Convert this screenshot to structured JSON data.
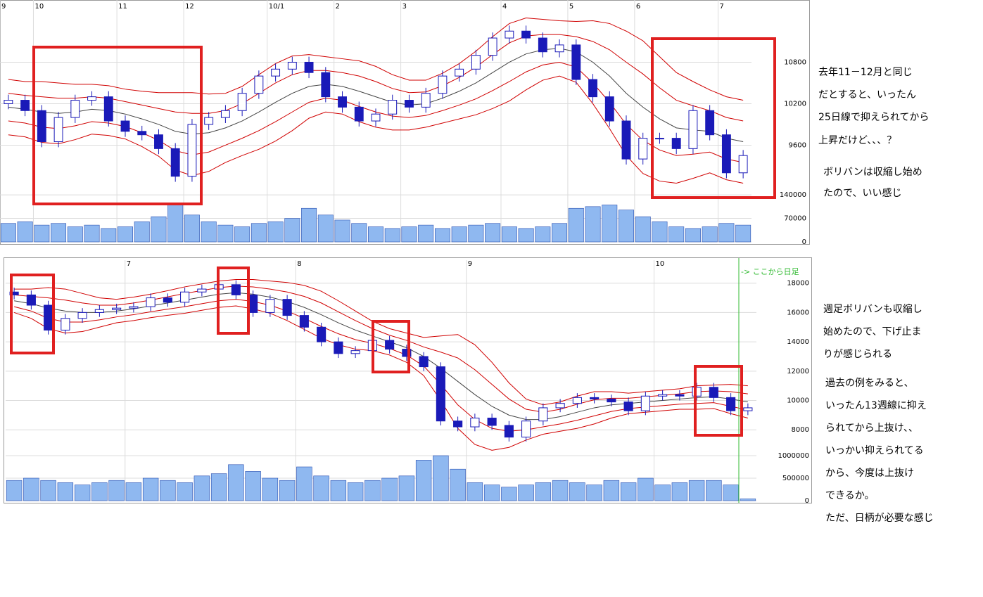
{
  "chart_data": [
    {
      "type": "candlestick",
      "categories": [
        "9",
        null,
        "10",
        null,
        null,
        null,
        null,
        "11",
        null,
        null,
        null,
        "12",
        null,
        null,
        null,
        null,
        "10/1",
        null,
        null,
        null,
        "2",
        null,
        null,
        null,
        "3",
        null,
        null,
        null,
        null,
        null,
        "4",
        null,
        null,
        null,
        "5",
        null,
        null,
        null,
        "6",
        null,
        null,
        null,
        null,
        "7",
        null
      ],
      "open": [
        10200,
        10250,
        10100,
        9650,
        10000,
        10250,
        10300,
        9950,
        9800,
        9750,
        9550,
        9150,
        9900,
        10000,
        10100,
        10350,
        10600,
        10700,
        10800,
        10650,
        10300,
        10150,
        9950,
        10050,
        10250,
        10150,
        10350,
        10600,
        10700,
        10900,
        11150,
        11250,
        11150,
        10950,
        11050,
        10550,
        10300,
        9950,
        9400,
        9700,
        9700,
        9550,
        10100,
        9750,
        9200
      ],
      "high": [
        10330,
        10330,
        10180,
        10080,
        10330,
        10380,
        10380,
        10030,
        9880,
        9830,
        9630,
        9980,
        10080,
        10180,
        10430,
        10680,
        10780,
        10880,
        10880,
        10730,
        10380,
        10230,
        10130,
        10330,
        10330,
        10430,
        10680,
        10780,
        10980,
        11230,
        11330,
        11330,
        11230,
        11130,
        11130,
        10630,
        10380,
        10030,
        9780,
        9780,
        9780,
        10180,
        10180,
        9830,
        9530
      ],
      "low": [
        10120,
        10020,
        9570,
        9570,
        9920,
        10170,
        9870,
        9720,
        9670,
        9470,
        9070,
        9070,
        9820,
        9920,
        10020,
        10270,
        10520,
        10620,
        10570,
        10220,
        10070,
        9870,
        9870,
        9970,
        10070,
        10070,
        10270,
        10520,
        10620,
        10820,
        11070,
        11070,
        10870,
        10870,
        10470,
        10220,
        9870,
        9320,
        9320,
        9620,
        9470,
        9470,
        9670,
        9120,
        9120
      ],
      "close": [
        10250,
        10100,
        9650,
        10000,
        10250,
        10300,
        9950,
        9800,
        9750,
        9550,
        9150,
        9900,
        10000,
        10100,
        10350,
        10600,
        10700,
        10800,
        10650,
        10300,
        10150,
        9950,
        10050,
        10250,
        10150,
        10350,
        10600,
        10700,
        10900,
        11150,
        11250,
        11150,
        10950,
        11050,
        10550,
        10300,
        9950,
        9400,
        9700,
        9700,
        9550,
        10100,
        9750,
        9200,
        9450
      ],
      "up_color": "#ffffff",
      "down_color": "#1a1ab8",
      "candle_stroke": "#1a1ab8",
      "series": [
        {
          "color": "#444444",
          "values": [
            10150,
            10120,
            10080,
            10060,
            10080,
            10120,
            10100,
            10050,
            9980,
            9900,
            9800,
            9760,
            9780,
            9850,
            9950,
            10080,
            10220,
            10350,
            10450,
            10480,
            10450,
            10380,
            10300,
            10220,
            10180,
            10200,
            10280,
            10380,
            10500,
            10650,
            10800,
            10920,
            10980,
            11000,
            10950,
            10800,
            10600,
            10350,
            10150,
            9980,
            9850,
            9820,
            9800,
            9700,
            9650
          ]
        },
        {
          "color": "#d00000",
          "values": [
            10350,
            10320,
            10300,
            10280,
            10280,
            10300,
            10280,
            10230,
            10180,
            10130,
            10080,
            10060,
            10060,
            10100,
            10200,
            10350,
            10500,
            10620,
            10680,
            10680,
            10650,
            10600,
            10520,
            10420,
            10360,
            10370,
            10460,
            10580,
            10730,
            10910,
            11080,
            11180,
            11200,
            11200,
            11170,
            11100,
            10980,
            10800,
            10630,
            10430,
            10250,
            10170,
            10100,
            10000,
            9950
          ]
        },
        {
          "color": "#d00000",
          "values": [
            10550,
            10520,
            10520,
            10500,
            10480,
            10480,
            10460,
            10410,
            10380,
            10360,
            10360,
            10360,
            10340,
            10350,
            10450,
            10620,
            10780,
            10890,
            10910,
            10880,
            10850,
            10820,
            10740,
            10620,
            10540,
            10540,
            10640,
            10780,
            10960,
            11170,
            11360,
            11440,
            11420,
            11400,
            11390,
            11400,
            11360,
            11250,
            11110,
            10880,
            10650,
            10520,
            10400,
            10300,
            10250
          ]
        },
        {
          "color": "#d00000",
          "values": [
            9950,
            9920,
            9860,
            9840,
            9880,
            9940,
            9920,
            9870,
            9780,
            9670,
            9520,
            9460,
            9500,
            9600,
            9700,
            9810,
            9940,
            10080,
            10220,
            10280,
            10250,
            10160,
            10080,
            10020,
            10000,
            10030,
            10100,
            10180,
            10270,
            10390,
            10520,
            10660,
            10760,
            10800,
            10730,
            10500,
            10220,
            9900,
            9670,
            9530,
            9450,
            9470,
            9500,
            9400,
            9350
          ]
        },
        {
          "color": "#d00000",
          "values": [
            9750,
            9720,
            9640,
            9620,
            9680,
            9760,
            9740,
            9690,
            9580,
            9440,
            9240,
            9160,
            9220,
            9350,
            9450,
            9540,
            9660,
            9810,
            9990,
            10080,
            10050,
            9940,
            9860,
            9820,
            9820,
            9860,
            9920,
            9980,
            10040,
            10130,
            10240,
            10400,
            10540,
            10600,
            10510,
            10200,
            9840,
            9450,
            9190,
            9080,
            9050,
            9120,
            9200,
            9100,
            9050
          ]
        }
      ],
      "ylim": [
        8750,
        11700
      ],
      "yticks": [
        9600,
        10200,
        10800
      ],
      "grid": true,
      "volume": {
        "color": "#8fb8f0",
        "values": [
          55000,
          60000,
          50000,
          55000,
          45000,
          50000,
          40000,
          45000,
          60000,
          75000,
          110000,
          80000,
          60000,
          50000,
          45000,
          55000,
          60000,
          70000,
          100000,
          80000,
          65000,
          55000,
          45000,
          40000,
          45000,
          50000,
          40000,
          45000,
          50000,
          55000,
          45000,
          40000,
          45000,
          55000,
          100000,
          105000,
          110000,
          95000,
          75000,
          60000,
          45000,
          40000,
          45000,
          55000,
          50000
        ],
        "ylim": [
          0,
          180000
        ],
        "yticks": [
          0,
          70000,
          140000
        ]
      }
    },
    {
      "type": "candlestick",
      "categories": [
        null,
        null,
        null,
        null,
        null,
        null,
        null,
        "7",
        null,
        null,
        null,
        null,
        null,
        null,
        null,
        null,
        null,
        "8",
        null,
        null,
        null,
        null,
        null,
        null,
        null,
        null,
        null,
        "9",
        null,
        null,
        null,
        null,
        null,
        null,
        null,
        null,
        null,
        null,
        "10",
        null,
        null,
        null,
        null,
        null
      ],
      "open": [
        17400,
        17200,
        16500,
        14800,
        15600,
        16000,
        16200,
        16300,
        16400,
        17000,
        16700,
        17400,
        17600,
        17900,
        17200,
        16000,
        16900,
        15800,
        15000,
        14000,
        13200,
        13400,
        14100,
        13500,
        13000,
        12300,
        8600,
        8200,
        8800,
        8300,
        7500,
        8600,
        9500,
        9800,
        10200,
        10100,
        9900,
        9300,
        10300,
        10400,
        10300,
        10900,
        10200,
        9300
      ],
      "high": [
        17700,
        17500,
        16800,
        15900,
        16300,
        16500,
        16600,
        16700,
        17300,
        17300,
        17700,
        17900,
        18200,
        18200,
        17500,
        17200,
        17200,
        16100,
        15300,
        14300,
        13700,
        14400,
        14400,
        13800,
        13300,
        12600,
        8900,
        9100,
        9100,
        8600,
        8900,
        9800,
        10100,
        10500,
        10500,
        10400,
        10200,
        10600,
        10700,
        10700,
        11200,
        11200,
        10500,
        9800
      ],
      "low": [
        16900,
        16200,
        14500,
        14500,
        15300,
        15700,
        15900,
        16000,
        16100,
        16400,
        16400,
        17100,
        17300,
        16900,
        15700,
        15700,
        15500,
        14700,
        13700,
        12900,
        12900,
        13100,
        13200,
        12700,
        12000,
        8300,
        7900,
        7900,
        8000,
        7200,
        7200,
        8300,
        9200,
        9500,
        9800,
        9600,
        9000,
        9000,
        10000,
        10000,
        10000,
        9900,
        9000,
        9000
      ],
      "close": [
        17200,
        16500,
        14800,
        15600,
        16000,
        16200,
        16300,
        16400,
        17000,
        16700,
        17400,
        17600,
        17900,
        17200,
        16000,
        16900,
        15800,
        15000,
        14000,
        13200,
        13400,
        14100,
        13500,
        13000,
        12300,
        8600,
        8200,
        8800,
        8300,
        7500,
        8600,
        9500,
        9800,
        10200,
        10100,
        9900,
        9300,
        10300,
        10400,
        10300,
        10900,
        10200,
        9300,
        9500
      ],
      "up_color": "#ffffff",
      "down_color": "#1a1ab8",
      "candle_stroke": "#1a1ab8",
      "series": [
        {
          "color": "#444444",
          "values": [
            16800,
            16600,
            16300,
            16100,
            16000,
            16000,
            16100,
            16250,
            16450,
            16650,
            16850,
            17050,
            17250,
            17350,
            17250,
            17050,
            16750,
            16350,
            15850,
            15300,
            14800,
            14400,
            14000,
            13600,
            13000,
            12200,
            11300,
            10400,
            9600,
            9000,
            8700,
            8700,
            8900,
            9200,
            9500,
            9700,
            9800,
            9900,
            10000,
            10100,
            10200,
            10250,
            10100,
            9900
          ]
        },
        {
          "color": "#d00000",
          "values": [
            17200,
            17100,
            17000,
            16850,
            16650,
            16500,
            16500,
            16650,
            16850,
            17070,
            17300,
            17500,
            17700,
            17800,
            17750,
            17600,
            17400,
            17100,
            16650,
            16050,
            15450,
            14900,
            14450,
            14100,
            13650,
            13300,
            12900,
            12100,
            11100,
            10100,
            9400,
            9200,
            9400,
            9750,
            10050,
            10150,
            10150,
            10250,
            10350,
            10450,
            10600,
            10650,
            10600,
            10450
          ]
        },
        {
          "color": "#d00000",
          "values": [
            17600,
            17600,
            17700,
            17600,
            17300,
            17000,
            16900,
            17050,
            17250,
            17490,
            17750,
            17950,
            18150,
            18250,
            18250,
            18150,
            18050,
            17850,
            17450,
            16800,
            16100,
            15400,
            14900,
            14600,
            14300,
            14400,
            14500,
            13800,
            12600,
            11200,
            10100,
            9700,
            9900,
            10300,
            10600,
            10600,
            10500,
            10600,
            10700,
            10800,
            11000,
            11050,
            11100,
            11000
          ]
        },
        {
          "color": "#d00000",
          "values": [
            16400,
            16100,
            15600,
            15350,
            15350,
            15500,
            15700,
            15850,
            16050,
            16230,
            16400,
            16600,
            16800,
            16900,
            16750,
            16500,
            16100,
            15600,
            15050,
            14550,
            14150,
            13900,
            13550,
            13100,
            12350,
            11100,
            9700,
            8700,
            8100,
            7900,
            8000,
            8200,
            8400,
            8650,
            8950,
            9250,
            9450,
            9550,
            9650,
            9750,
            9800,
            9850,
            9600,
            9350
          ]
        },
        {
          "color": "#d00000",
          "values": [
            16000,
            15600,
            14900,
            14600,
            14700,
            15000,
            15300,
            15450,
            15650,
            15810,
            15950,
            16150,
            16350,
            16450,
            16250,
            15950,
            15450,
            14850,
            14250,
            13800,
            13500,
            13400,
            13100,
            12600,
            11700,
            10000,
            8100,
            7000,
            6600,
            6800,
            7300,
            7700,
            7900,
            8100,
            8400,
            8800,
            9100,
            9200,
            9300,
            9400,
            9400,
            9450,
            9100,
            8800
          ]
        }
      ],
      "ylim": [
        5900,
        19570
      ],
      "yticks": [
        8000,
        10000,
        12000,
        14000,
        16000,
        18000
      ],
      "grid": true,
      "volume": {
        "color": "#8fb8f0",
        "values": [
          450000,
          500000,
          450000,
          400000,
          350000,
          400000,
          450000,
          400000,
          500000,
          450000,
          400000,
          550000,
          600000,
          800000,
          650000,
          500000,
          450000,
          750000,
          550000,
          450000,
          400000,
          450000,
          500000,
          550000,
          900000,
          1000000,
          700000,
          400000,
          350000,
          300000,
          350000,
          400000,
          450000,
          400000,
          350000,
          450000,
          400000,
          500000,
          350000,
          400000,
          450000,
          450000,
          350000,
          40000
        ],
        "ylim": [
          0,
          1125000
        ],
        "yticks": [
          0,
          500000,
          1000000
        ]
      },
      "divider_label": "-> ここから日足",
      "divider_color": "#33bb33"
    }
  ],
  "notes": [
    "去年11－12月と同じ",
    "だとすると、いったん",
    "25日線で抑えられてから",
    "上昇だけど、、、？",
    "ボリバンは収縮し始め",
    "たので、いい感じ",
    "週足ボリバンも収縮し",
    "始めたので、下げ止ま",
    "りが感じられる",
    "過去の例をみると、",
    "いったん13週線に抑え",
    "られてから上抜け、、",
    "いっかい抑えられてる",
    "から、今度は上抜け",
    "できるか。",
    "ただ、日柄が必要な感じ"
  ]
}
